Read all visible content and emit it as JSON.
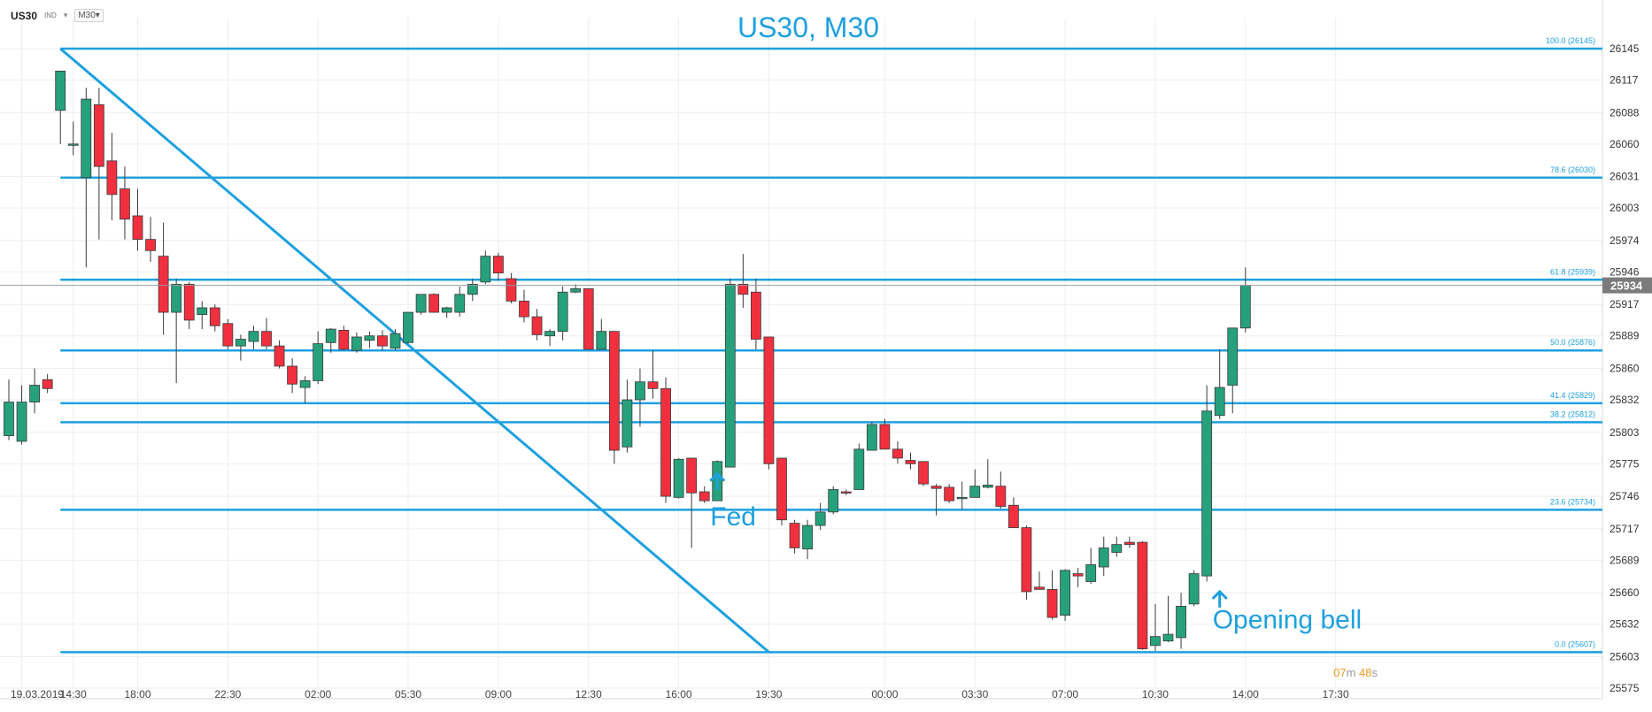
{
  "toolbar": {
    "symbol": "US30",
    "market": "IND",
    "timeframe": "M30"
  },
  "timer": {
    "minutes": "07",
    "min_unit": "m",
    "seconds": "48",
    "sec_unit": "s"
  },
  "colors": {
    "up": "#26a17b",
    "down": "#f0303f",
    "fib": "#1ea0e0",
    "text": "#1ea0e0"
  },
  "chart_data": {
    "type": "candlestick",
    "title": "US30, M30",
    "ylim": [
      25575,
      26160
    ],
    "y_ticks": [
      26145,
      26117,
      26088,
      26060,
      26031,
      26003,
      25974,
      25946,
      25917,
      25889,
      25860,
      25832,
      25803,
      25775,
      25746,
      25717,
      25689,
      25660,
      25632,
      25603,
      25575
    ],
    "x_ticks": [
      {
        "label": "19.03.2019",
        "bar": 1
      },
      {
        "label": "14:30",
        "bar": 5
      },
      {
        "label": "18:00",
        "bar": 10
      },
      {
        "label": "22:30",
        "bar": 17
      },
      {
        "label": "02:00",
        "bar": 24
      },
      {
        "label": "05:30",
        "bar": 31
      },
      {
        "label": "09:00",
        "bar": 38
      },
      {
        "label": "12:30",
        "bar": 45
      },
      {
        "label": "16:00",
        "bar": 52
      },
      {
        "label": "19:30",
        "bar": 59
      },
      {
        "label": "00:00",
        "bar": 68
      },
      {
        "label": "03:30",
        "bar": 75
      },
      {
        "label": "07:00",
        "bar": 82
      },
      {
        "label": "10:30",
        "bar": 89
      },
      {
        "label": "14:00",
        "bar": 96
      },
      {
        "label": "17:30",
        "bar": 103
      }
    ],
    "current_price": 25934,
    "fib_levels": [
      {
        "label": "100.0 (26145)",
        "value": 26145
      },
      {
        "label": "78.6 (26030)",
        "value": 26030
      },
      {
        "label": "61.8 (25939)",
        "value": 25939
      },
      {
        "label": "50.0 (25876)",
        "value": 25876
      },
      {
        "label": "41.4 (25829)",
        "value": 25829
      },
      {
        "label": "38.2 (25812)",
        "value": 25812
      },
      {
        "label": "23.6 (25734)",
        "value": 25734
      },
      {
        "label": "0.0 (25607)",
        "value": 25607
      }
    ],
    "trendline": {
      "from": {
        "bar": 4,
        "value": 26145
      },
      "to": {
        "bar": 59,
        "value": 25607
      }
    },
    "annotations": [
      {
        "text": "Fed",
        "bar": 55,
        "value": 25728,
        "arrow_value": 25766
      },
      {
        "text": "Opening bell",
        "bar": 94,
        "value": 25636,
        "arrow_value": 25661
      }
    ],
    "candles": [
      {
        "o": 25800,
        "h": 25850,
        "l": 25796,
        "c": 25830
      },
      {
        "o": 25795,
        "h": 25845,
        "l": 25792,
        "c": 25830
      },
      {
        "o": 25830,
        "h": 25860,
        "l": 25820,
        "c": 25845
      },
      {
        "o": 25850,
        "h": 25855,
        "l": 25838,
        "c": 25842
      },
      {
        "o": 26090,
        "h": 26125,
        "l": 26060,
        "c": 26125
      },
      {
        "o": 26060,
        "h": 26080,
        "l": 26050,
        "c": 26060
      },
      {
        "o": 26030,
        "h": 26110,
        "l": 25950,
        "c": 26100
      },
      {
        "o": 26095,
        "h": 26110,
        "l": 25975,
        "c": 26040
      },
      {
        "o": 26045,
        "h": 26070,
        "l": 25992,
        "c": 26015
      },
      {
        "o": 26020,
        "h": 26040,
        "l": 25975,
        "c": 25993
      },
      {
        "o": 25996,
        "h": 26020,
        "l": 25965,
        "c": 25975
      },
      {
        "o": 25975,
        "h": 25995,
        "l": 25955,
        "c": 25965
      },
      {
        "o": 25960,
        "h": 25990,
        "l": 25890,
        "c": 25910
      },
      {
        "o": 25910,
        "h": 25940,
        "l": 25847,
        "c": 25935
      },
      {
        "o": 25935,
        "h": 25937,
        "l": 25895,
        "c": 25903
      },
      {
        "o": 25908,
        "h": 25920,
        "l": 25895,
        "c": 25914
      },
      {
        "o": 25914,
        "h": 25917,
        "l": 25893,
        "c": 25898
      },
      {
        "o": 25900,
        "h": 25904,
        "l": 25877,
        "c": 25880
      },
      {
        "o": 25880,
        "h": 25890,
        "l": 25867,
        "c": 25886
      },
      {
        "o": 25884,
        "h": 25898,
        "l": 25877,
        "c": 25893
      },
      {
        "o": 25893,
        "h": 25905,
        "l": 25877,
        "c": 25880
      },
      {
        "o": 25880,
        "h": 25885,
        "l": 25860,
        "c": 25862
      },
      {
        "o": 25862,
        "h": 25869,
        "l": 25838,
        "c": 25846
      },
      {
        "o": 25843,
        "h": 25853,
        "l": 25829,
        "c": 25849
      },
      {
        "o": 25849,
        "h": 25893,
        "l": 25846,
        "c": 25882
      },
      {
        "o": 25883,
        "h": 25896,
        "l": 25874,
        "c": 25895
      },
      {
        "o": 25894,
        "h": 25898,
        "l": 25876,
        "c": 25877
      },
      {
        "o": 25876,
        "h": 25892,
        "l": 25874,
        "c": 25888
      },
      {
        "o": 25885,
        "h": 25893,
        "l": 25878,
        "c": 25889
      },
      {
        "o": 25889,
        "h": 25894,
        "l": 25876,
        "c": 25880
      },
      {
        "o": 25878,
        "h": 25895,
        "l": 25876,
        "c": 25891
      },
      {
        "o": 25883,
        "h": 25906,
        "l": 25882,
        "c": 25910
      },
      {
        "o": 25910,
        "h": 25925,
        "l": 25908,
        "c": 25926
      },
      {
        "o": 25926,
        "h": 25927,
        "l": 25910,
        "c": 25910
      },
      {
        "o": 25910,
        "h": 25915,
        "l": 25905,
        "c": 25914
      },
      {
        "o": 25910,
        "h": 25933,
        "l": 25906,
        "c": 25926
      },
      {
        "o": 25926,
        "h": 25940,
        "l": 25920,
        "c": 25935
      },
      {
        "o": 25937,
        "h": 25965,
        "l": 25935,
        "c": 25960
      },
      {
        "o": 25960,
        "h": 25963,
        "l": 25938,
        "c": 25945
      },
      {
        "o": 25940,
        "h": 25945,
        "l": 25918,
        "c": 25920
      },
      {
        "o": 25920,
        "h": 25930,
        "l": 25901,
        "c": 25906
      },
      {
        "o": 25906,
        "h": 25913,
        "l": 25885,
        "c": 25890
      },
      {
        "o": 25889,
        "h": 25895,
        "l": 25880,
        "c": 25893
      },
      {
        "o": 25893,
        "h": 25933,
        "l": 25885,
        "c": 25928
      },
      {
        "o": 25928,
        "h": 25935,
        "l": 25927,
        "c": 25931
      },
      {
        "o": 25931,
        "h": 25931,
        "l": 25877,
        "c": 25877
      },
      {
        "o": 25877,
        "h": 25904,
        "l": 25877,
        "c": 25893
      },
      {
        "o": 25893,
        "h": 25893,
        "l": 25775,
        "c": 25787
      },
      {
        "o": 25790,
        "h": 25850,
        "l": 25785,
        "c": 25832
      },
      {
        "o": 25832,
        "h": 25860,
        "l": 25808,
        "c": 25848
      },
      {
        "o": 25848,
        "h": 25876,
        "l": 25833,
        "c": 25842
      },
      {
        "o": 25842,
        "h": 25852,
        "l": 25740,
        "c": 25746
      },
      {
        "o": 25745,
        "h": 25780,
        "l": 25744,
        "c": 25779
      },
      {
        "o": 25780,
        "h": 25780,
        "l": 25700,
        "c": 25749
      },
      {
        "o": 25750,
        "h": 25755,
        "l": 25740,
        "c": 25742
      },
      {
        "o": 25742,
        "h": 25778,
        "l": 25742,
        "c": 25777
      },
      {
        "o": 25772,
        "h": 25940,
        "l": 25772,
        "c": 25935
      },
      {
        "o": 25935,
        "h": 25962,
        "l": 25914,
        "c": 25926
      },
      {
        "o": 25928,
        "h": 25940,
        "l": 25877,
        "c": 25886
      },
      {
        "o": 25888,
        "h": 25888,
        "l": 25770,
        "c": 25775
      },
      {
        "o": 25780,
        "h": 25780,
        "l": 25720,
        "c": 25725
      },
      {
        "o": 25722,
        "h": 25725,
        "l": 25695,
        "c": 25700
      },
      {
        "o": 25699,
        "h": 25725,
        "l": 25690,
        "c": 25720
      },
      {
        "o": 25720,
        "h": 25740,
        "l": 25716,
        "c": 25732
      },
      {
        "o": 25732,
        "h": 25755,
        "l": 25730,
        "c": 25752
      },
      {
        "o": 25750,
        "h": 25752,
        "l": 25747,
        "c": 25749
      },
      {
        "o": 25752,
        "h": 25793,
        "l": 25752,
        "c": 25788
      },
      {
        "o": 25787,
        "h": 25812,
        "l": 25787,
        "c": 25810
      },
      {
        "o": 25810,
        "h": 25815,
        "l": 25788,
        "c": 25788
      },
      {
        "o": 25788,
        "h": 25795,
        "l": 25775,
        "c": 25780
      },
      {
        "o": 25778,
        "h": 25785,
        "l": 25770,
        "c": 25775
      },
      {
        "o": 25777,
        "h": 25777,
        "l": 25755,
        "c": 25757
      },
      {
        "o": 25755,
        "h": 25757,
        "l": 25729,
        "c": 25753
      },
      {
        "o": 25754,
        "h": 25757,
        "l": 25740,
        "c": 25742
      },
      {
        "o": 25745,
        "h": 25759,
        "l": 25734,
        "c": 25745
      },
      {
        "o": 25745,
        "h": 25770,
        "l": 25745,
        "c": 25755
      },
      {
        "o": 25754,
        "h": 25779,
        "l": 25753,
        "c": 25756
      },
      {
        "o": 25755,
        "h": 25768,
        "l": 25735,
        "c": 25737
      },
      {
        "o": 25738,
        "h": 25745,
        "l": 25718,
        "c": 25718
      },
      {
        "o": 25718,
        "h": 25720,
        "l": 25654,
        "c": 25661
      },
      {
        "o": 25665,
        "h": 25679,
        "l": 25663,
        "c": 25663
      },
      {
        "o": 25663,
        "h": 25680,
        "l": 25636,
        "c": 25638
      },
      {
        "o": 25640,
        "h": 25681,
        "l": 25635,
        "c": 25680
      },
      {
        "o": 25677,
        "h": 25682,
        "l": 25665,
        "c": 25675
      },
      {
        "o": 25670,
        "h": 25700,
        "l": 25668,
        "c": 25685
      },
      {
        "o": 25683,
        "h": 25710,
        "l": 25675,
        "c": 25700
      },
      {
        "o": 25696,
        "h": 25710,
        "l": 25692,
        "c": 25703
      },
      {
        "o": 25705,
        "h": 25710,
        "l": 25700,
        "c": 25703
      },
      {
        "o": 25705,
        "h": 25706,
        "l": 25609,
        "c": 25610
      },
      {
        "o": 25613,
        "h": 25650,
        "l": 25608,
        "c": 25621
      },
      {
        "o": 25617,
        "h": 25657,
        "l": 25616,
        "c": 25623
      },
      {
        "o": 25620,
        "h": 25660,
        "l": 25610,
        "c": 25648
      },
      {
        "o": 25650,
        "h": 25680,
        "l": 25648,
        "c": 25677
      },
      {
        "o": 25675,
        "h": 25845,
        "l": 25670,
        "c": 25822
      },
      {
        "o": 25818,
        "h": 25877,
        "l": 25815,
        "c": 25843
      },
      {
        "o": 25845,
        "h": 25893,
        "l": 25820,
        "c": 25896
      },
      {
        "o": 25896,
        "h": 25950,
        "l": 25892,
        "c": 25934
      }
    ]
  }
}
